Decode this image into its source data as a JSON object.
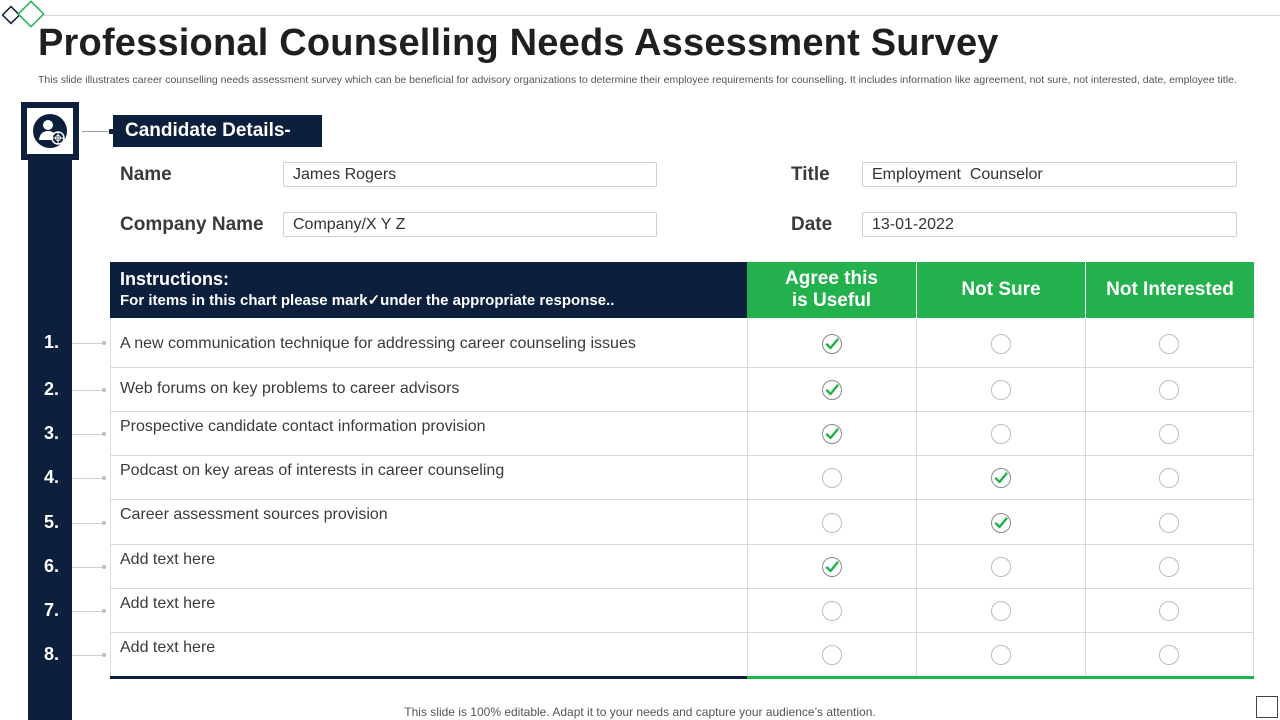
{
  "page": {
    "title": "Professional Counselling Needs Assessment Survey",
    "subtitle": "This slide illustrates career counselling needs assessment survey which can be beneficial for advisory organizations to determine their employee requirements for counselling. It includes information like agreement, not sure, not interested, date, employee title.",
    "footer": "This slide is 100% editable. Adapt it to your needs and capture your audience’s attention."
  },
  "colors": {
    "navy": "#0c1f3d",
    "green": "#22b14c"
  },
  "icons": {
    "avatar": "user-target-icon",
    "check": "checkmark-icon"
  },
  "candidate": {
    "header": "Candidate Details-",
    "name_label": "Name",
    "name_value": "James Rogers",
    "title_label": "Title",
    "title_value": "Employment  Counselor",
    "company_label": "Company Name",
    "company_value": "Company/X Y Z",
    "date_label": "Date",
    "date_value": "13-01-2022"
  },
  "table": {
    "instructions_title": "Instructions:",
    "instructions_text": "For items in this chart please mark✓under the appropriate response..",
    "col_agree": "Agree this is Useful",
    "col_not_sure": "Not Sure",
    "col_not_interested": "Not Interested",
    "rows": [
      {
        "num": "1.",
        "text": "A new communication technique for addressing career counseling issues",
        "selected": "agree"
      },
      {
        "num": "2.",
        "text": "Web forums on key problems to career advisors",
        "selected": "agree"
      },
      {
        "num": "3.",
        "text": "Prospective candidate contact information provision",
        "selected": "agree"
      },
      {
        "num": "4.",
        "text": "Podcast on key areas of interests in career counseling",
        "selected": "not_sure"
      },
      {
        "num": "5.",
        "text": "Career assessment sources provision",
        "selected": "not_sure"
      },
      {
        "num": "6.",
        "text": "Add text here",
        "selected": "agree"
      },
      {
        "num": "7.",
        "text": "Add text here",
        "selected": "none"
      },
      {
        "num": "8.",
        "text": "Add text here",
        "selected": "none"
      }
    ]
  }
}
